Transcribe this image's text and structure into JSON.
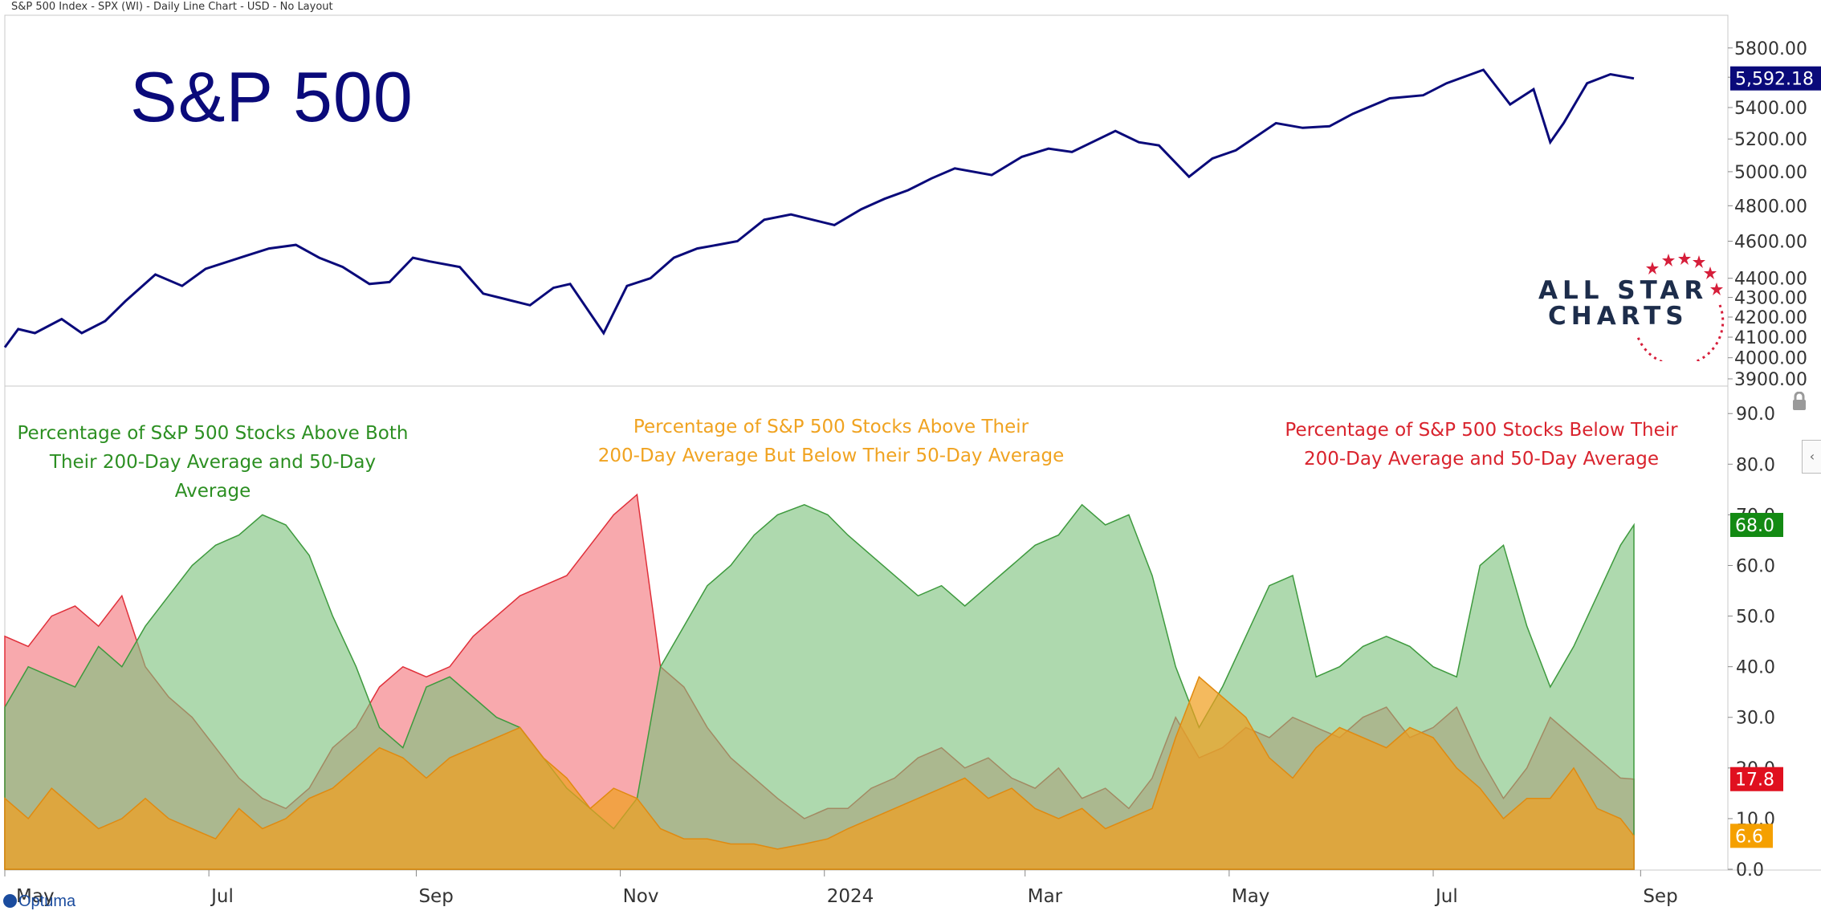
{
  "header": "S&P 500 Index - SPX (WI) - Daily Line Chart - USD - No Layout",
  "brand_logo": {
    "line1": "ALL STAR",
    "line2": "CHARTS"
  },
  "footer_brand": "Optuma",
  "colors": {
    "price_line": "#0a0a7a",
    "above_both": "#3e9a3e",
    "above_both_fill": "#7cc27c",
    "above200_below50": "#f0a020",
    "below_both": "#e0303a",
    "below_both_fill": "#f36a72",
    "badge_price": "#0a0a7a",
    "badge_green": "#138a13",
    "badge_red": "#e0101f",
    "badge_orange": "#f5a000"
  },
  "chart_data": [
    {
      "type": "line",
      "title": "S&P 500",
      "y_ticks": [
        "5800.00",
        "5600.00",
        "5400.00",
        "5200.00",
        "5000.00",
        "4800.00",
        "4600.00",
        "4400.00",
        "4300.00",
        "4200.00",
        "4100.00",
        "4000.00",
        "3900.00"
      ],
      "y_scale": "log",
      "ylim": [
        3900,
        5900
      ],
      "last_value_label": "5,592.18",
      "series": [
        {
          "x": [
            "2023-05-01",
            "2023-05-05",
            "2023-05-10",
            "2023-05-18",
            "2023-05-24",
            "2023-05-31",
            "2023-06-06",
            "2023-06-15",
            "2023-06-23",
            "2023-06-30",
            "2023-07-12",
            "2023-07-19",
            "2023-07-27",
            "2023-08-03",
            "2023-08-10",
            "2023-08-18",
            "2023-08-24",
            "2023-08-31",
            "2023-09-05",
            "2023-09-14",
            "2023-09-21",
            "2023-09-28",
            "2023-10-05",
            "2023-10-12",
            "2023-10-17",
            "2023-10-27",
            "2023-11-03",
            "2023-11-10",
            "2023-11-17",
            "2023-11-24",
            "2023-11-30",
            "2023-12-06",
            "2023-12-14",
            "2023-12-22",
            "2024-01-04",
            "2024-01-12",
            "2024-01-19",
            "2024-01-26",
            "2024-02-02",
            "2024-02-09",
            "2024-02-20",
            "2024-02-29",
            "2024-03-08",
            "2024-03-15",
            "2024-03-28",
            "2024-04-04",
            "2024-04-10",
            "2024-04-19",
            "2024-04-26",
            "2024-05-03",
            "2024-05-15",
            "2024-05-23",
            "2024-05-31",
            "2024-06-07",
            "2024-06-18",
            "2024-06-28",
            "2024-07-05",
            "2024-07-16",
            "2024-07-24",
            "2024-07-31",
            "2024-08-05",
            "2024-08-09",
            "2024-08-16",
            "2024-08-23",
            "2024-08-30"
          ],
          "values": [
            4050,
            4140,
            4120,
            4190,
            4120,
            4180,
            4280,
            4420,
            4360,
            4450,
            4520,
            4560,
            4580,
            4510,
            4460,
            4370,
            4380,
            4510,
            4490,
            4460,
            4320,
            4290,
            4260,
            4350,
            4370,
            4120,
            4360,
            4400,
            4510,
            4560,
            4580,
            4600,
            4720,
            4750,
            4690,
            4780,
            4840,
            4890,
            4960,
            5020,
            4980,
            5090,
            5140,
            5120,
            5250,
            5180,
            5160,
            4970,
            5080,
            5130,
            5300,
            5270,
            5280,
            5360,
            5460,
            5480,
            5560,
            5650,
            5420,
            5520,
            5180,
            5300,
            5560,
            5620,
            5592
          ]
        }
      ]
    },
    {
      "type": "area",
      "x_tick_labels": [
        "May",
        "Jul",
        "Sep",
        "Nov",
        "2024",
        "Mar",
        "May",
        "Jul",
        "Sep"
      ],
      "y_ticks": [
        "90.0",
        "80.0",
        "70.0",
        "60.0",
        "50.0",
        "40.0",
        "30.0",
        "20.0",
        "10.0",
        "0.0"
      ],
      "ylim": [
        0,
        94
      ],
      "series": [
        {
          "name": "Percentage of S&P 500 Stocks Above Both Their 200-Day Average and 50-Day Average",
          "name_line1": "Percentage of S&P 500 Stocks Above Both",
          "name_line2": "Their 200-Day Average and 50-Day Average",
          "last_value_label": "68.0",
          "x": [
            "2023-05-01",
            "2023-05-08",
            "2023-05-15",
            "2023-05-22",
            "2023-05-29",
            "2023-06-05",
            "2023-06-12",
            "2023-06-19",
            "2023-06-26",
            "2023-07-03",
            "2023-07-10",
            "2023-07-17",
            "2023-07-24",
            "2023-07-31",
            "2023-08-07",
            "2023-08-14",
            "2023-08-21",
            "2023-08-28",
            "2023-09-04",
            "2023-09-11",
            "2023-09-18",
            "2023-09-25",
            "2023-10-02",
            "2023-10-09",
            "2023-10-16",
            "2023-10-23",
            "2023-10-30",
            "2023-11-06",
            "2023-11-13",
            "2023-11-20",
            "2023-11-27",
            "2023-12-04",
            "2023-12-11",
            "2023-12-18",
            "2023-12-26",
            "2024-01-02",
            "2024-01-08",
            "2024-01-15",
            "2024-01-22",
            "2024-01-29",
            "2024-02-05",
            "2024-02-12",
            "2024-02-19",
            "2024-02-26",
            "2024-03-04",
            "2024-03-11",
            "2024-03-18",
            "2024-03-25",
            "2024-04-01",
            "2024-04-08",
            "2024-04-15",
            "2024-04-22",
            "2024-04-29",
            "2024-05-06",
            "2024-05-13",
            "2024-05-20",
            "2024-05-27",
            "2024-06-03",
            "2024-06-10",
            "2024-06-17",
            "2024-06-24",
            "2024-07-01",
            "2024-07-08",
            "2024-07-15",
            "2024-07-22",
            "2024-07-29",
            "2024-08-05",
            "2024-08-12",
            "2024-08-19",
            "2024-08-26",
            "2024-08-30"
          ],
          "values": [
            32,
            40,
            38,
            36,
            44,
            40,
            48,
            54,
            60,
            64,
            66,
            70,
            68,
            62,
            50,
            40,
            28,
            24,
            36,
            38,
            34,
            30,
            28,
            22,
            16,
            12,
            8,
            14,
            40,
            48,
            56,
            60,
            66,
            70,
            72,
            70,
            66,
            62,
            58,
            54,
            56,
            52,
            56,
            60,
            64,
            66,
            72,
            68,
            70,
            58,
            40,
            28,
            36,
            46,
            56,
            58,
            38,
            40,
            44,
            46,
            44,
            40,
            38,
            60,
            64,
            48,
            36,
            44,
            54,
            64,
            68
          ]
        },
        {
          "name": "Percentage of S&P 500 Stocks Above Their 200-Day Average But Below Their 50-Day Average",
          "name_line1": "Percentage of S&P 500 Stocks Above Their",
          "name_line2": "200-Day Average But Below Their 50-Day Average",
          "last_value_label": "6.6",
          "x": [
            "2023-05-01",
            "2023-05-08",
            "2023-05-15",
            "2023-05-22",
            "2023-05-29",
            "2023-06-05",
            "2023-06-12",
            "2023-06-19",
            "2023-06-26",
            "2023-07-03",
            "2023-07-10",
            "2023-07-17",
            "2023-07-24",
            "2023-07-31",
            "2023-08-07",
            "2023-08-14",
            "2023-08-21",
            "2023-08-28",
            "2023-09-04",
            "2023-09-11",
            "2023-09-18",
            "2023-09-25",
            "2023-10-02",
            "2023-10-09",
            "2023-10-16",
            "2023-10-23",
            "2023-10-30",
            "2023-11-06",
            "2023-11-13",
            "2023-11-20",
            "2023-11-27",
            "2023-12-04",
            "2023-12-11",
            "2023-12-18",
            "2023-12-26",
            "2024-01-02",
            "2024-01-08",
            "2024-01-15",
            "2024-01-22",
            "2024-01-29",
            "2024-02-05",
            "2024-02-12",
            "2024-02-19",
            "2024-02-26",
            "2024-03-04",
            "2024-03-11",
            "2024-03-18",
            "2024-03-25",
            "2024-04-01",
            "2024-04-08",
            "2024-04-15",
            "2024-04-22",
            "2024-04-29",
            "2024-05-06",
            "2024-05-13",
            "2024-05-20",
            "2024-05-27",
            "2024-06-03",
            "2024-06-10",
            "2024-06-17",
            "2024-06-24",
            "2024-07-01",
            "2024-07-08",
            "2024-07-15",
            "2024-07-22",
            "2024-07-29",
            "2024-08-05",
            "2024-08-12",
            "2024-08-19",
            "2024-08-26",
            "2024-08-30"
          ],
          "values": [
            14,
            10,
            16,
            12,
            8,
            10,
            14,
            10,
            8,
            6,
            12,
            8,
            10,
            14,
            16,
            20,
            24,
            22,
            18,
            22,
            24,
            26,
            28,
            22,
            18,
            12,
            16,
            14,
            8,
            6,
            6,
            5,
            5,
            4,
            5,
            6,
            8,
            10,
            12,
            14,
            16,
            18,
            14,
            16,
            12,
            10,
            12,
            8,
            10,
            12,
            26,
            38,
            34,
            30,
            22,
            18,
            24,
            28,
            26,
            24,
            28,
            26,
            20,
            16,
            10,
            14,
            14,
            20,
            12,
            10,
            6.6
          ]
        },
        {
          "name": "Percentage of S&P 500 Stocks Below Their 200-Day Average and 50-Day Average",
          "name_line1": "Percentage of S&P 500 Stocks Below Their",
          "name_line2": "200-Day Average and 50-Day Average",
          "last_value_label": "17.8",
          "x": [
            "2023-05-01",
            "2023-05-08",
            "2023-05-15",
            "2023-05-22",
            "2023-05-29",
            "2023-06-05",
            "2023-06-12",
            "2023-06-19",
            "2023-06-26",
            "2023-07-03",
            "2023-07-10",
            "2023-07-17",
            "2023-07-24",
            "2023-07-31",
            "2023-08-07",
            "2023-08-14",
            "2023-08-21",
            "2023-08-28",
            "2023-09-04",
            "2023-09-11",
            "2023-09-18",
            "2023-09-25",
            "2023-10-02",
            "2023-10-09",
            "2023-10-16",
            "2023-10-23",
            "2023-10-30",
            "2023-11-06",
            "2023-11-13",
            "2023-11-20",
            "2023-11-27",
            "2023-12-04",
            "2023-12-11",
            "2023-12-18",
            "2023-12-26",
            "2024-01-02",
            "2024-01-08",
            "2024-01-15",
            "2024-01-22",
            "2024-01-29",
            "2024-02-05",
            "2024-02-12",
            "2024-02-19",
            "2024-02-26",
            "2024-03-04",
            "2024-03-11",
            "2024-03-18",
            "2024-03-25",
            "2024-04-01",
            "2024-04-08",
            "2024-04-15",
            "2024-04-22",
            "2024-04-29",
            "2024-05-06",
            "2024-05-13",
            "2024-05-20",
            "2024-05-27",
            "2024-06-03",
            "2024-06-10",
            "2024-06-17",
            "2024-06-24",
            "2024-07-01",
            "2024-07-08",
            "2024-07-15",
            "2024-07-22",
            "2024-07-29",
            "2024-08-05",
            "2024-08-12",
            "2024-08-19",
            "2024-08-26",
            "2024-08-30"
          ],
          "values": [
            46,
            44,
            50,
            52,
            48,
            54,
            40,
            34,
            30,
            24,
            18,
            14,
            12,
            16,
            24,
            28,
            36,
            40,
            38,
            40,
            46,
            50,
            54,
            56,
            58,
            64,
            70,
            74,
            40,
            36,
            28,
            22,
            18,
            14,
            10,
            12,
            12,
            16,
            18,
            22,
            24,
            20,
            22,
            18,
            16,
            20,
            14,
            16,
            12,
            18,
            30,
            22,
            24,
            28,
            26,
            30,
            28,
            26,
            30,
            32,
            26,
            28,
            32,
            22,
            14,
            20,
            30,
            26,
            22,
            18,
            17.8
          ]
        }
      ]
    }
  ]
}
